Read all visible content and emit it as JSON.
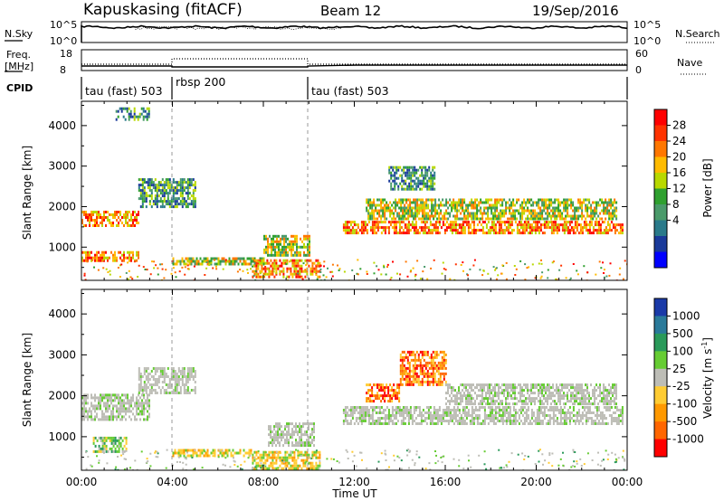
{
  "header": {
    "station": "Kapuskasing (fitACF)",
    "beam": "Beam 12",
    "date": "19/Sep/2016"
  },
  "nsky_panel": {
    "left_label": "N.Sky",
    "left_ticks": [
      "10^5",
      "10^0"
    ],
    "right_label": "N.Search",
    "right_ticks": [
      "10^5",
      "10^0"
    ]
  },
  "freq_panel": {
    "left_label_line1": "Freq.",
    "left_label_line2": "[MHz]",
    "left_ticks": [
      "18",
      "8"
    ],
    "right_label": "Nave",
    "right_ticks": [
      "60",
      "0"
    ]
  },
  "cpid_panel": {
    "label": "CPID",
    "modes": [
      {
        "name": "tau (fast) 503",
        "start_hour": 0,
        "end_hour": 4
      },
      {
        "name": "rbsp 200",
        "start_hour": 4,
        "end_hour": 10
      },
      {
        "name": "tau (fast) 503",
        "start_hour": 10,
        "end_hour": 24
      }
    ]
  },
  "x_axis": {
    "label": "Time UT",
    "ticks": [
      "00:00",
      "04:00",
      "08:00",
      "12:00",
      "16:00",
      "20:00",
      "00:00"
    ]
  },
  "power_colorbar": {
    "label": "Power [dB]",
    "ticks": [
      "28",
      "24",
      "20",
      "16",
      "12",
      "8",
      "4"
    ],
    "colors": [
      "#ff0000",
      "#ff3300",
      "#ff7700",
      "#ffbb00",
      "#b8d800",
      "#2fa02f",
      "#4a9a6a",
      "#2a7a8a",
      "#1a3a9a",
      "#0000ff"
    ]
  },
  "velocity_colorbar": {
    "label": "Velocity [m s^-1]",
    "ticks": [
      "1000",
      "500",
      "100",
      "25",
      "-25",
      "-100",
      "-500",
      "-1000"
    ],
    "colors": [
      "#1a3aa8",
      "#2a7a9a",
      "#2a9a5a",
      "#66cc33",
      "#bdbdb6",
      "#ffcc33",
      "#ff9900",
      "#ff6600",
      "#ff0000"
    ]
  },
  "chart_data": [
    {
      "type": "heatmap",
      "title": "Power",
      "xlabel": "Time UT",
      "ylabel": "Slant Range [km]",
      "ylim": [
        180,
        4600
      ],
      "yticks": [
        1000,
        2000,
        3000,
        4000
      ],
      "xlim": [
        0,
        24
      ],
      "colorbar": {
        "label": "Power [dB]",
        "range": [
          0,
          32
        ]
      },
      "bands": [
        {
          "t_start": 0,
          "t_end": 2.5,
          "range_start": 650,
          "range_end": 900,
          "level": "high"
        },
        {
          "t_start": 0,
          "t_end": 2.5,
          "range_start": 1550,
          "range_end": 1900,
          "level": "high"
        },
        {
          "t_start": 2.5,
          "t_end": 5,
          "range_start": 2000,
          "range_end": 2700,
          "level": "low"
        },
        {
          "t_start": 1.5,
          "t_end": 3,
          "range_start": 4150,
          "range_end": 4450,
          "level": "low"
        },
        {
          "t_start": 4,
          "t_end": 8,
          "range_start": 550,
          "range_end": 750,
          "level": "mid"
        },
        {
          "t_start": 7.5,
          "t_end": 10.5,
          "range_start": 250,
          "range_end": 700,
          "level": "high"
        },
        {
          "t_start": 8,
          "t_end": 10,
          "range_start": 800,
          "range_end": 1300,
          "level": "mid"
        },
        {
          "t_start": 11.5,
          "t_end": 23.8,
          "range_start": 1350,
          "range_end": 1650,
          "level": "high"
        },
        {
          "t_start": 12.5,
          "t_end": 23.5,
          "range_start": 1700,
          "range_end": 2200,
          "level": "mid"
        },
        {
          "t_start": 13.5,
          "t_end": 15.5,
          "range_start": 2400,
          "range_end": 3000,
          "level": "low"
        }
      ]
    },
    {
      "type": "heatmap",
      "title": "Velocity",
      "xlabel": "Time UT",
      "ylabel": "Slant Range [km]",
      "ylim": [
        180,
        4600
      ],
      "yticks": [
        1000,
        2000,
        3000,
        4000
      ],
      "xlim": [
        0,
        24
      ],
      "colorbar": {
        "label": "Velocity [m s^-1]",
        "range": [
          -1000,
          1000
        ]
      },
      "bands": [
        {
          "t_start": 0,
          "t_end": 3,
          "range_start": 1450,
          "range_end": 2050,
          "level": "ground"
        },
        {
          "t_start": 0.5,
          "t_end": 2,
          "range_start": 650,
          "range_end": 1000,
          "level": "toward"
        },
        {
          "t_start": 2.5,
          "t_end": 5,
          "range_start": 2050,
          "range_end": 2700,
          "level": "ground"
        },
        {
          "t_start": 4,
          "t_end": 7.5,
          "range_start": 550,
          "range_end": 700,
          "level": "away_small"
        },
        {
          "t_start": 7.5,
          "t_end": 10.5,
          "range_start": 250,
          "range_end": 650,
          "level": "away_small"
        },
        {
          "t_start": 8.2,
          "t_end": 10.2,
          "range_start": 800,
          "range_end": 1350,
          "level": "ground"
        },
        {
          "t_start": 11.5,
          "t_end": 23.8,
          "range_start": 1350,
          "range_end": 1750,
          "level": "ground"
        },
        {
          "t_start": 12.5,
          "t_end": 14,
          "range_start": 1900,
          "range_end": 2300,
          "level": "away"
        },
        {
          "t_start": 14,
          "t_end": 16,
          "range_start": 2300,
          "range_end": 3100,
          "level": "away"
        },
        {
          "t_start": 16,
          "t_end": 23.5,
          "range_start": 1800,
          "range_end": 2300,
          "level": "ground"
        }
      ]
    }
  ]
}
